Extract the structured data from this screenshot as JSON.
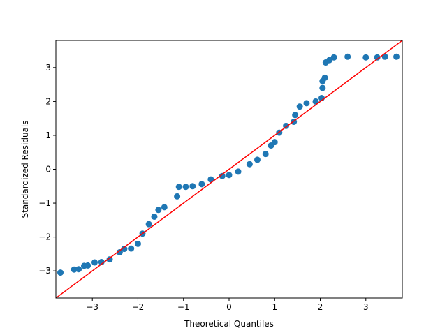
{
  "chart_data": {
    "type": "scatter",
    "title": "",
    "xlabel": "Theoretical Quantiles",
    "ylabel": "Standardized Residuals",
    "xlim": [
      -3.8,
      3.8
    ],
    "ylim": [
      -3.8,
      3.8
    ],
    "xticks": [
      -3,
      -2,
      -1,
      0,
      1,
      2,
      3
    ],
    "xtick_labels": [
      "−3",
      "−2",
      "−1",
      "0",
      "1",
      "2",
      "3"
    ],
    "yticks": [
      -3,
      -2,
      -1,
      0,
      1,
      2,
      3
    ],
    "ytick_labels": [
      "−3",
      "−2",
      "−1",
      "0",
      "1",
      "2",
      "3"
    ],
    "grid": false,
    "legend": "none",
    "reference_line": {
      "slope": 1,
      "intercept": 0,
      "color": "#ff0000"
    },
    "marker_color": "#1f77b4",
    "series": [
      {
        "points": [
          [
            -3.7,
            -3.05
          ],
          [
            -3.4,
            -2.96
          ],
          [
            -3.3,
            -2.95
          ],
          [
            -3.18,
            -2.85
          ],
          [
            -3.1,
            -2.84
          ],
          [
            -2.95,
            -2.75
          ],
          [
            -2.8,
            -2.74
          ],
          [
            -2.62,
            -2.66
          ],
          [
            -2.4,
            -2.45
          ],
          [
            -2.3,
            -2.35
          ],
          [
            -2.15,
            -2.34
          ],
          [
            -2.0,
            -2.2
          ],
          [
            -1.9,
            -1.9
          ],
          [
            -1.76,
            -1.62
          ],
          [
            -1.64,
            -1.4
          ],
          [
            -1.55,
            -1.2
          ],
          [
            -1.42,
            -1.12
          ],
          [
            -1.14,
            -0.8
          ],
          [
            -1.1,
            -0.52
          ],
          [
            -0.95,
            -0.52
          ],
          [
            -0.8,
            -0.5
          ],
          [
            -0.6,
            -0.44
          ],
          [
            -0.4,
            -0.3
          ],
          [
            -0.15,
            -0.2
          ],
          [
            0.0,
            -0.17
          ],
          [
            0.2,
            -0.07
          ],
          [
            0.45,
            0.15
          ],
          [
            0.62,
            0.28
          ],
          [
            0.8,
            0.45
          ],
          [
            0.92,
            0.7
          ],
          [
            1.0,
            0.8
          ],
          [
            1.1,
            1.08
          ],
          [
            1.25,
            1.28
          ],
          [
            1.42,
            1.4
          ],
          [
            1.45,
            1.6
          ],
          [
            1.55,
            1.85
          ],
          [
            1.7,
            1.95
          ],
          [
            1.9,
            2.0
          ],
          [
            2.03,
            2.1
          ],
          [
            2.05,
            2.4
          ],
          [
            2.05,
            2.6
          ],
          [
            2.1,
            2.7
          ],
          [
            2.12,
            3.15
          ],
          [
            2.2,
            3.22
          ],
          [
            2.3,
            3.3
          ],
          [
            2.6,
            3.32
          ],
          [
            3.0,
            3.3
          ],
          [
            3.25,
            3.3
          ],
          [
            3.42,
            3.32
          ],
          [
            3.67,
            3.32
          ]
        ]
      }
    ]
  }
}
